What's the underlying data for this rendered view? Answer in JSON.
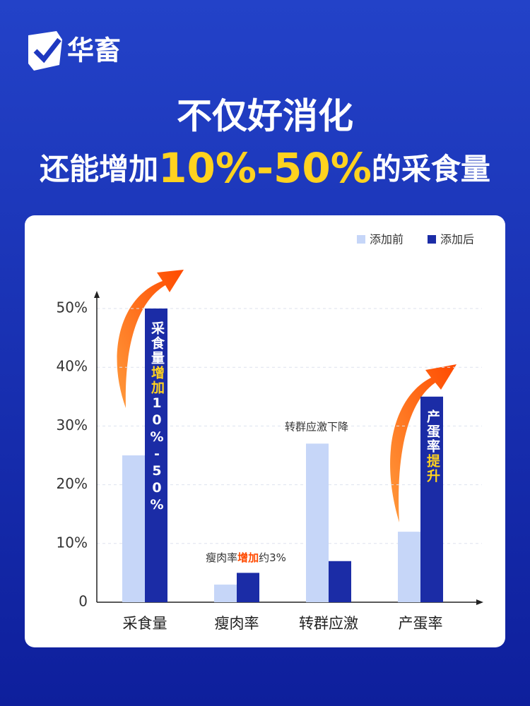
{
  "header": {
    "brand": "华畜",
    "title_line1": "不仅好消化",
    "title_line2_parts": [
      "还能增加",
      "10%-50%",
      "的采食量"
    ]
  },
  "chart_data": {
    "type": "bar",
    "categories": [
      "采食量",
      "瘦肉率",
      "转群应激",
      "产蛋率"
    ],
    "series": [
      {
        "name": "添加前",
        "color": "#c6d6f8",
        "values": [
          25,
          3,
          27,
          12
        ]
      },
      {
        "name": "添加后",
        "color": "#1b2ca6",
        "values": [
          50,
          5,
          7,
          35
        ]
      }
    ],
    "ylim": [
      0,
      50
    ],
    "yticks": [
      0,
      {
        "value": 10,
        "label": "10%"
      },
      {
        "value": 20,
        "label": "20%"
      },
      {
        "value": 30,
        "label": "30%"
      },
      {
        "value": 40,
        "label": "40%"
      },
      {
        "value": 50,
        "label": "50%"
      }
    ],
    "grid": true,
    "legend": "top-right",
    "annotations": [
      {
        "parts": [
          "采食量",
          "增加",
          "10%-50%"
        ]
      },
      {
        "parts": [
          "瘦肉率",
          "增加",
          "约3%"
        ]
      },
      {
        "parts": [
          "转群应激下降"
        ]
      },
      {
        "parts": [
          "产蛋率",
          "提升"
        ]
      }
    ]
  }
}
